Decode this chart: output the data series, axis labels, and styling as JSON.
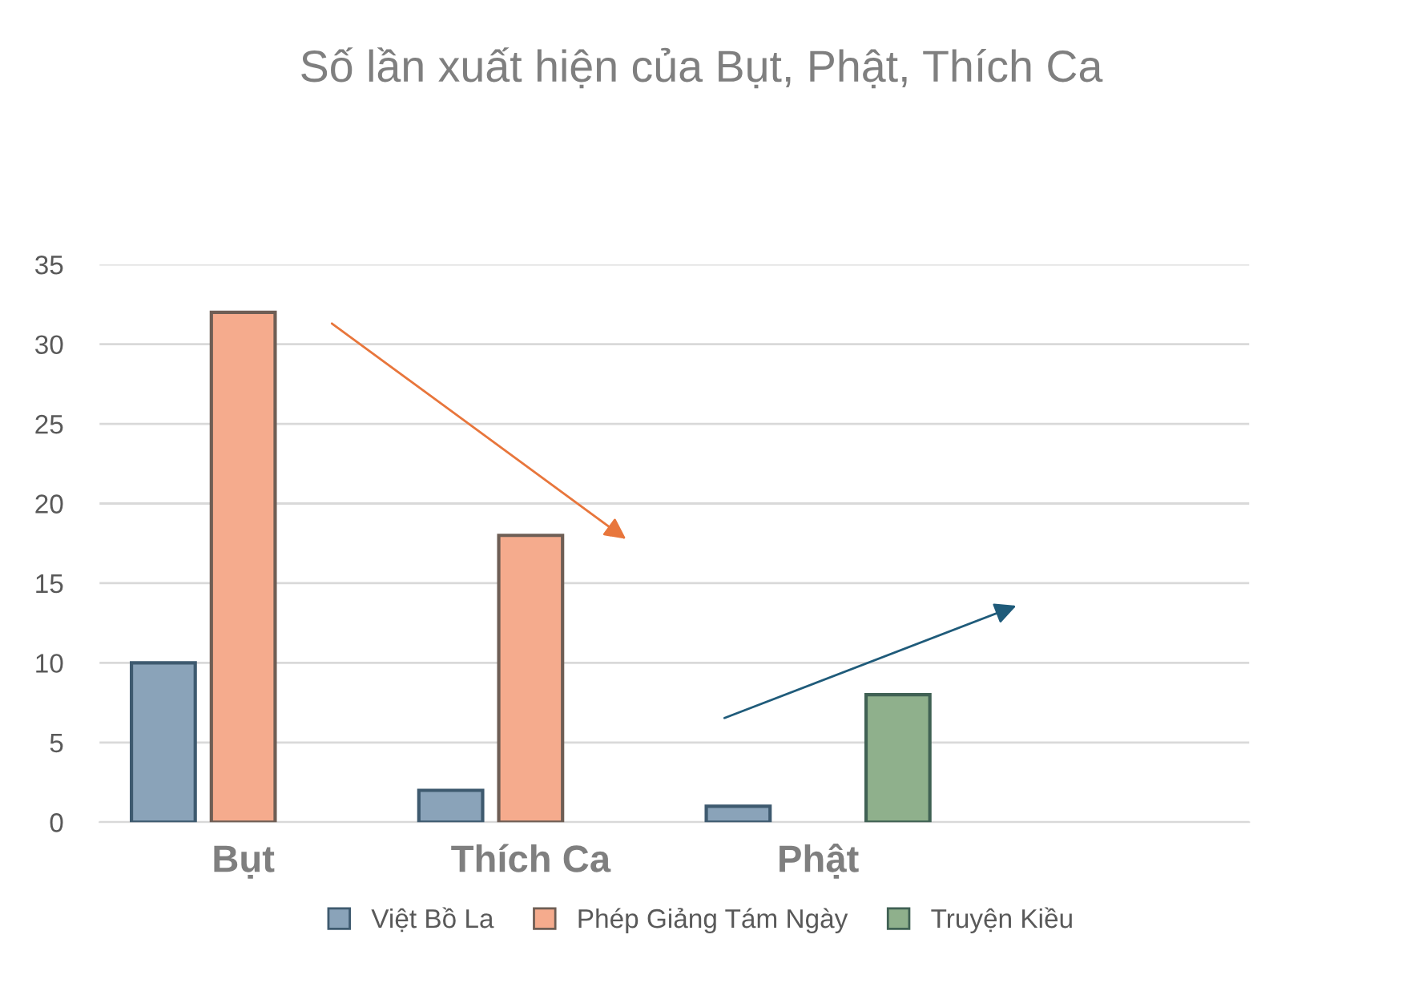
{
  "chart_data": {
    "type": "bar",
    "title": "Số lần xuất hiện của Bụt, Phật, Thích Ca",
    "categories": [
      "Bụt",
      "Thích Ca",
      "Phật",
      null
    ],
    "series": [
      {
        "name": "Việt Bồ La",
        "color": "#8aa3b9",
        "values": [
          10,
          2,
          1,
          null
        ]
      },
      {
        "name": "Phép Giảng Tám Ngày",
        "color": "#f5ab8d",
        "values": [
          32,
          18,
          null,
          null
        ]
      },
      {
        "name": "Truyện Kiều",
        "color": "#8fb08c",
        "values": [
          null,
          null,
          8,
          null
        ]
      }
    ],
    "ylim": [
      0,
      35
    ],
    "yticks": [
      0,
      5,
      10,
      15,
      20,
      25,
      30,
      35
    ],
    "grid": "y",
    "legend": "bottom"
  }
}
